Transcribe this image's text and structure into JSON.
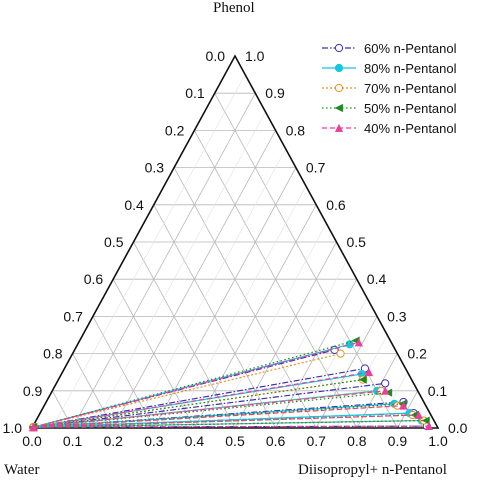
{
  "chart_data": {
    "type": "scatter",
    "subtype": "ternary",
    "corner_labels": {
      "top": "Phenol",
      "left": "Water",
      "right": "Diisopropyl+ n-Pentanol"
    },
    "ticks": [
      "0.0",
      "0.1",
      "0.2",
      "0.3",
      "0.4",
      "0.5",
      "0.6",
      "0.7",
      "0.8",
      "0.9",
      "1.0"
    ],
    "grid": true,
    "legend_position": "top-right",
    "series": [
      {
        "name": "60% n-Pentanol",
        "color": "#3a2fb5",
        "dash": "6 2 1.5 2",
        "marker": "circle-open",
        "tie_lines": [
          {
            "aq": [
              0.998,
              0.002
            ],
            "org": [
              0.64,
              0.21
            ]
          },
          {
            "aq": [
              0.998,
              0.002
            ],
            "org": [
              0.74,
              0.16
            ]
          },
          {
            "aq": [
              0.998,
              0.002
            ],
            "org": [
              0.81,
              0.12
            ]
          },
          {
            "aq": [
              0.998,
              0.002
            ],
            "org": [
              0.88,
              0.07
            ]
          },
          {
            "aq": [
              0.998,
              0.002
            ],
            "org": [
              0.92,
              0.04
            ]
          },
          {
            "aq": [
              0.998,
              0.002
            ],
            "org": [
              0.97,
              0.005
            ]
          }
        ]
      },
      {
        "name": "80% n-Pentanol",
        "color": "#14c8de",
        "dash": "",
        "marker": "circle-filled",
        "tie_lines": [
          {
            "aq": [
              0.998,
              0.002
            ],
            "org": [
              0.67,
              0.225
            ]
          },
          {
            "aq": [
              0.998,
              0.002
            ],
            "org": [
              0.74,
              0.145
            ]
          },
          {
            "aq": [
              0.998,
              0.002
            ],
            "org": [
              0.8,
              0.1
            ]
          },
          {
            "aq": [
              0.998,
              0.002
            ],
            "org": [
              0.86,
              0.065
            ]
          },
          {
            "aq": [
              0.998,
              0.002
            ],
            "org": [
              0.91,
              0.04
            ]
          },
          {
            "aq": [
              0.998,
              0.002
            ],
            "org": [
              0.95,
              0.02
            ]
          }
        ]
      },
      {
        "name": "70% n-Pentanol",
        "color": "#e8901e",
        "dash": "2 2",
        "marker": "circle-open",
        "tie_lines": [
          {
            "aq": [
              0.998,
              0.002
            ],
            "org": [
              0.66,
              0.2
            ]
          },
          {
            "aq": [
              0.998,
              0.002
            ],
            "org": [
              0.75,
              0.13
            ]
          },
          {
            "aq": [
              0.998,
              0.002
            ],
            "org": [
              0.81,
              0.1
            ]
          },
          {
            "aq": [
              0.998,
              0.002
            ],
            "org": [
              0.87,
              0.06
            ]
          },
          {
            "aq": [
              0.998,
              0.002
            ],
            "org": [
              0.92,
              0.035
            ]
          },
          {
            "aq": [
              0.998,
              0.002
            ],
            "org": [
              0.955,
              0.02
            ]
          }
        ]
      },
      {
        "name": "50% n-Pentanol",
        "color": "#1e8a1e",
        "dash": "1.5 2.5",
        "marker": "triangle-left-filled",
        "tie_lines": [
          {
            "aq": [
              0.998,
              0.002
            ],
            "org": [
              0.68,
              0.235
            ]
          },
          {
            "aq": [
              0.998,
              0.002
            ],
            "org": [
              0.75,
              0.13
            ]
          },
          {
            "aq": [
              0.998,
              0.002
            ],
            "org": [
              0.83,
              0.095
            ]
          },
          {
            "aq": [
              0.998,
              0.002
            ],
            "org": [
              0.88,
              0.065
            ]
          },
          {
            "aq": [
              0.998,
              0.002
            ],
            "org": [
              0.925,
              0.035
            ]
          },
          {
            "aq": [
              0.998,
              0.002
            ],
            "org": [
              0.96,
              0.02
            ]
          }
        ]
      },
      {
        "name": "40% n-Pentanol",
        "color": "#e8409a",
        "dash": "5 3",
        "marker": "triangle-up-filled",
        "tie_lines": [
          {
            "aq": [
              0.998,
              0.002
            ],
            "org": [
              0.69,
              0.23
            ]
          },
          {
            "aq": [
              0.998,
              0.002
            ],
            "org": [
              0.755,
              0.15
            ]
          },
          {
            "aq": [
              0.998,
              0.002
            ],
            "org": [
              0.82,
              0.1
            ]
          },
          {
            "aq": [
              0.998,
              0.002
            ],
            "org": [
              0.885,
              0.06
            ]
          },
          {
            "aq": [
              0.998,
              0.002
            ],
            "org": [
              0.935,
              0.035
            ]
          },
          {
            "aq": [
              0.998,
              0.002
            ],
            "org": [
              0.975,
              0.005
            ]
          }
        ]
      }
    ]
  }
}
